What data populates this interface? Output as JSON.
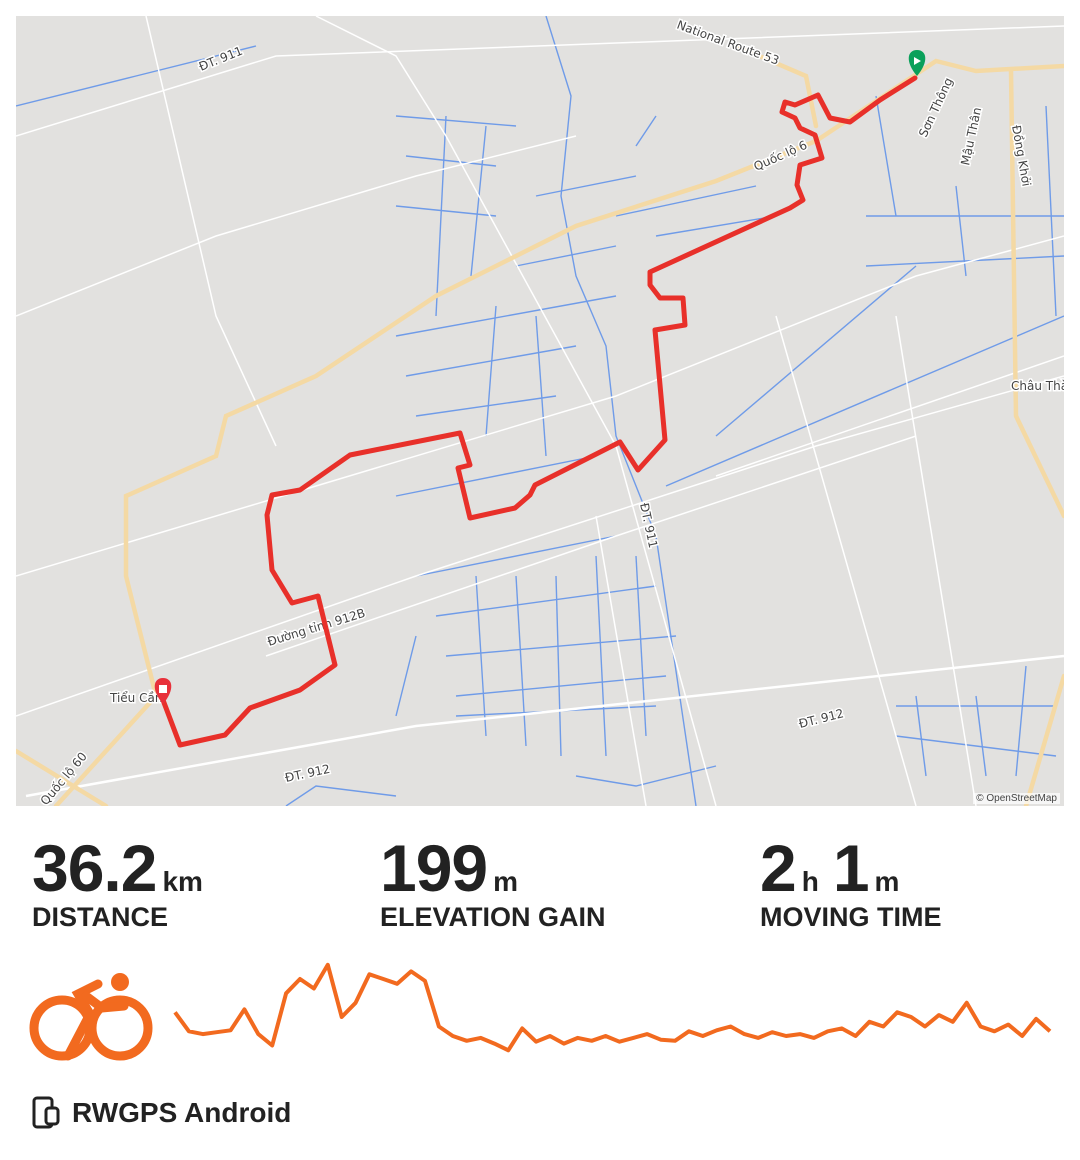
{
  "map": {
    "attribution": "© OpenStreetMap",
    "route_color": "#e8302a",
    "start_marker_color": "#0aa05a",
    "end_marker_color": "#e8303a",
    "labels": [
      "National Route 53",
      "ĐT. 911",
      "Quốc lộ 6",
      "Sơn Thông",
      "Mậu Thân",
      "Đồng Khởi",
      "Châu Thà",
      "ĐT. 911",
      "Đường tỉnh 912B",
      "Tiểu Cần",
      "ĐT. 912",
      "ĐT. 912",
      "Quốc lộ 60"
    ]
  },
  "stats": [
    {
      "parts": [
        {
          "value": "36.2",
          "unit": "km"
        }
      ],
      "label": "DISTANCE"
    },
    {
      "parts": [
        {
          "value": "199",
          "unit": "m"
        }
      ],
      "label": "ELEVATION GAIN"
    },
    {
      "parts": [
        {
          "value": "2",
          "unit": "h"
        },
        {
          "value": "1",
          "unit": "m"
        }
      ],
      "label": "MOVING TIME"
    }
  ],
  "activity": {
    "icon": "cycling-icon",
    "color": "#f26a1f"
  },
  "elevation_profile": [
    45,
    25,
    22,
    24,
    26,
    48,
    22,
    10,
    65,
    80,
    70,
    95,
    40,
    55,
    85,
    80,
    75,
    88,
    78,
    30,
    20,
    15,
    18,
    12,
    5,
    28,
    14,
    20,
    12,
    18,
    15,
    20,
    14,
    18,
    22,
    16,
    15,
    25,
    20,
    26,
    30,
    22,
    18,
    24,
    20,
    22,
    18,
    25,
    28,
    20,
    35,
    30,
    45,
    40,
    30,
    42,
    35,
    55,
    30,
    25,
    32,
    20,
    38,
    25
  ],
  "device": {
    "icon": "phone-watch-icon",
    "name": "RWGPS Android"
  }
}
